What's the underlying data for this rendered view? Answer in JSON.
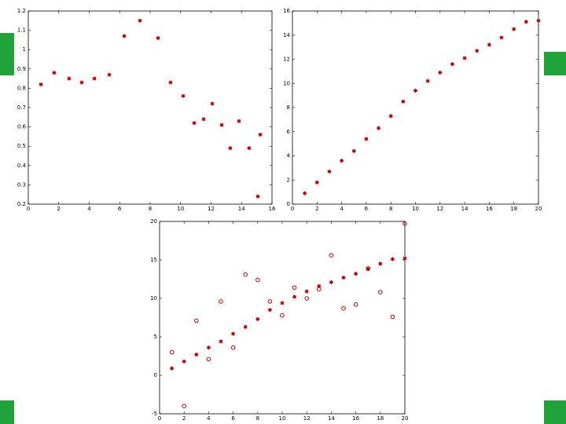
{
  "chart_data": [
    {
      "type": "scatter",
      "xlim": [
        0,
        16
      ],
      "ylim": [
        0.2,
        1.2
      ],
      "xticks": [
        0,
        2,
        4,
        6,
        8,
        10,
        12,
        14,
        16
      ],
      "yticks": [
        0.2,
        0.3,
        0.4,
        0.5,
        0.6,
        0.7,
        0.8,
        0.9,
        1,
        1.1,
        1.2
      ],
      "series": [
        {
          "color": "#c00000",
          "marker": "star",
          "x": [
            0.83,
            1.7,
            2.68,
            3.51,
            4.34,
            5.32,
            6.3,
            7.33,
            8.52,
            9.34,
            10.17,
            10.89,
            11.51,
            12.08,
            12.7,
            13.26,
            13.83,
            14.5,
            15.23,
            15.07
          ],
          "values": [
            0.82,
            0.88,
            0.85,
            0.83,
            0.85,
            0.87,
            1.07,
            1.15,
            1.06,
            0.83,
            0.76,
            0.62,
            0.64,
            0.72,
            0.61,
            0.49,
            0.63,
            0.49,
            0.56,
            0.24
          ]
        }
      ]
    },
    {
      "type": "scatter",
      "xlim": [
        0,
        20
      ],
      "ylim": [
        0,
        16
      ],
      "xticks": [
        0,
        2,
        4,
        6,
        8,
        10,
        12,
        14,
        16,
        18,
        20
      ],
      "yticks": [
        0,
        2,
        4,
        6,
        8,
        10,
        12,
        14,
        16
      ],
      "series": [
        {
          "color": "#c00000",
          "marker": "star",
          "x": [
            1,
            2,
            3,
            4,
            5,
            6,
            7,
            8,
            9,
            10,
            11,
            12,
            13,
            14,
            15,
            16,
            17,
            18,
            19,
            20
          ],
          "values": [
            0.9,
            1.8,
            2.7,
            3.6,
            4.4,
            5.4,
            6.3,
            7.3,
            8.5,
            9.4,
            10.2,
            10.9,
            11.6,
            12.1,
            12.7,
            13.2,
            13.8,
            14.5,
            15.1,
            15.2
          ]
        }
      ]
    },
    {
      "type": "scatter",
      "xlim": [
        0,
        20
      ],
      "ylim": [
        -5,
        20
      ],
      "xticks": [
        0,
        2,
        4,
        6,
        8,
        10,
        12,
        14,
        16,
        18,
        20
      ],
      "yticks": [
        -5,
        0,
        5,
        10,
        15,
        20
      ],
      "series": [
        {
          "color": "#c00000",
          "marker": "star",
          "x": [
            1,
            2,
            3,
            4,
            5,
            6,
            7,
            8,
            9,
            10,
            11,
            12,
            13,
            14,
            15,
            16,
            17,
            18,
            19,
            20
          ],
          "values": [
            0.9,
            1.8,
            2.7,
            3.6,
            4.4,
            5.4,
            6.3,
            7.3,
            8.5,
            9.4,
            10.2,
            10.9,
            11.6,
            12.1,
            12.7,
            13.2,
            13.8,
            14.5,
            15.1,
            15.2
          ]
        },
        {
          "color": "#c00000",
          "marker": "circle",
          "x": [
            1,
            2,
            3,
            4,
            5,
            6,
            7,
            8,
            9,
            10,
            11,
            12,
            13,
            14,
            15,
            16,
            17,
            18,
            19,
            20
          ],
          "values": [
            3.0,
            -4.0,
            7.1,
            2.1,
            9.6,
            3.6,
            13.1,
            12.4,
            9.6,
            7.8,
            11.4,
            10.0,
            11.2,
            15.6,
            8.7,
            9.2,
            13.9,
            10.8,
            7.6,
            19.7
          ]
        }
      ]
    }
  ]
}
